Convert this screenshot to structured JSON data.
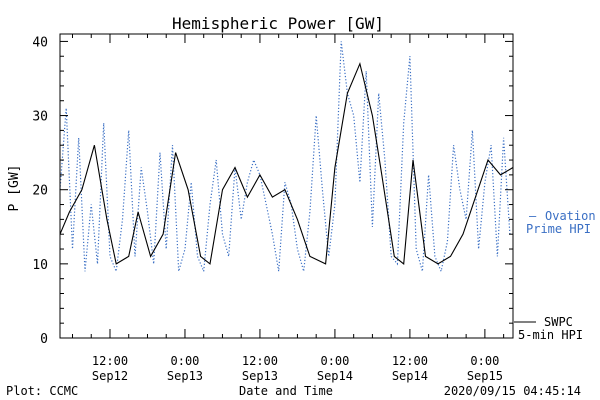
{
  "chart_data": {
    "type": "line",
    "title": "Hemispheric Power [GW]",
    "ylabel": "P [GW]",
    "xlabel": "Date and Time",
    "ylim": [
      0,
      41
    ],
    "xlim": [
      "2020-09-12T04:00",
      "2020-09-15T04:30"
    ],
    "y_ticks": [
      "0",
      "10",
      "20",
      "30",
      "40"
    ],
    "x_ticks": [
      {
        "time": "2020-09-12T12:00",
        "line1": "12:00",
        "line2": "Sep12"
      },
      {
        "time": "2020-09-13T00:00",
        "line1": "0:00",
        "line2": "Sep13"
      },
      {
        "time": "2020-09-13T12:00",
        "line1": "12:00",
        "line2": "Sep13"
      },
      {
        "time": "2020-09-14T00:00",
        "line1": "0:00",
        "line2": "Sep14"
      },
      {
        "time": "2020-09-14T12:00",
        "line1": "12:00",
        "line2": "Sep14"
      },
      {
        "time": "2020-09-15T00:00",
        "line1": "0:00",
        "line2": "Sep15"
      }
    ],
    "grid": false,
    "legend_placement": "right",
    "series": [
      {
        "name": "SWPC 5-min HPI",
        "legend_lines": [
          "SWPC",
          "5-min HPI"
        ],
        "color": "#000000",
        "style": "solid",
        "x": [
          "2020-09-12T04:00",
          "2020-09-12T05:30",
          "2020-09-12T07:30",
          "2020-09-12T09:30",
          "2020-09-12T11:30",
          "2020-09-12T13:00",
          "2020-09-12T15:00",
          "2020-09-12T16:30",
          "2020-09-12T18:30",
          "2020-09-12T20:30",
          "2020-09-12T22:30",
          "2020-09-13T00:30",
          "2020-09-13T02:30",
          "2020-09-13T04:00",
          "2020-09-13T06:00",
          "2020-09-13T08:00",
          "2020-09-13T10:00",
          "2020-09-13T12:00",
          "2020-09-13T14:00",
          "2020-09-13T16:00",
          "2020-09-13T18:00",
          "2020-09-13T20:00",
          "2020-09-13T22:30",
          "2020-09-14T00:00",
          "2020-09-14T02:00",
          "2020-09-14T04:00",
          "2020-09-14T06:00",
          "2020-09-14T07:30",
          "2020-09-14T09:30",
          "2020-09-14T11:00",
          "2020-09-14T12:30",
          "2020-09-14T14:30",
          "2020-09-14T16:30",
          "2020-09-14T18:30",
          "2020-09-14T20:30",
          "2020-09-14T22:30",
          "2020-09-15T00:30",
          "2020-09-15T02:30",
          "2020-09-15T04:30"
        ],
        "y": [
          14,
          17,
          20,
          26,
          16,
          10,
          11,
          17,
          11,
          14,
          25,
          20,
          11,
          10,
          20,
          23,
          19,
          22,
          19,
          20,
          16,
          11,
          10,
          23,
          33,
          37,
          30,
          22,
          11,
          10,
          24,
          11,
          10,
          11,
          14,
          19,
          24,
          22,
          23
        ]
      },
      {
        "name": "Ovation Prime HPI",
        "legend_lines": [
          "Ovation",
          "Prime HPI"
        ],
        "legend_marker": "—",
        "color": "#3a6fc4",
        "style": "dotted",
        "x": [
          "2020-09-12T04:00",
          "2020-09-12T05:00",
          "2020-09-12T06:00",
          "2020-09-12T07:00",
          "2020-09-12T08:00",
          "2020-09-12T09:00",
          "2020-09-12T10:00",
          "2020-09-12T11:00",
          "2020-09-12T12:00",
          "2020-09-12T13:00",
          "2020-09-12T14:00",
          "2020-09-12T15:00",
          "2020-09-12T16:00",
          "2020-09-12T17:00",
          "2020-09-12T18:00",
          "2020-09-12T19:00",
          "2020-09-12T20:00",
          "2020-09-12T21:00",
          "2020-09-12T22:00",
          "2020-09-12T23:00",
          "2020-09-13T00:00",
          "2020-09-13T01:00",
          "2020-09-13T02:00",
          "2020-09-13T03:00",
          "2020-09-13T04:00",
          "2020-09-13T05:00",
          "2020-09-13T06:00",
          "2020-09-13T07:00",
          "2020-09-13T08:00",
          "2020-09-13T09:00",
          "2020-09-13T10:00",
          "2020-09-13T11:00",
          "2020-09-13T12:00",
          "2020-09-13T13:00",
          "2020-09-13T14:00",
          "2020-09-13T15:00",
          "2020-09-13T16:00",
          "2020-09-13T17:00",
          "2020-09-13T18:00",
          "2020-09-13T19:00",
          "2020-09-13T20:00",
          "2020-09-13T21:00",
          "2020-09-13T22:00",
          "2020-09-13T23:00",
          "2020-09-14T00:00",
          "2020-09-14T01:00",
          "2020-09-14T02:00",
          "2020-09-14T03:00",
          "2020-09-14T04:00",
          "2020-09-14T05:00",
          "2020-09-14T06:00",
          "2020-09-14T07:00",
          "2020-09-14T08:00",
          "2020-09-14T09:00",
          "2020-09-14T10:00",
          "2020-09-14T11:00",
          "2020-09-14T12:00",
          "2020-09-14T13:00",
          "2020-09-14T14:00",
          "2020-09-14T15:00",
          "2020-09-14T16:00",
          "2020-09-14T17:00",
          "2020-09-14T18:00",
          "2020-09-14T19:00",
          "2020-09-14T20:00",
          "2020-09-14T21:00",
          "2020-09-14T22:00",
          "2020-09-14T23:00",
          "2020-09-15T00:00",
          "2020-09-15T01:00",
          "2020-09-15T02:00",
          "2020-09-15T03:00",
          "2020-09-15T04:00"
        ],
        "y": [
          20,
          31,
          12,
          27,
          9,
          18,
          10,
          29,
          11,
          9,
          16,
          28,
          11,
          23,
          17,
          10,
          25,
          12,
          26,
          9,
          12,
          21,
          11,
          9,
          18,
          24,
          14,
          11,
          23,
          16,
          21,
          24,
          22,
          18,
          14,
          9,
          21,
          18,
          12,
          9,
          17,
          30,
          20,
          11,
          18,
          40,
          33,
          30,
          21,
          36,
          15,
          33,
          24,
          11,
          10,
          29,
          38,
          12,
          9,
          22,
          11,
          9,
          13,
          26,
          20,
          16,
          28,
          12,
          21,
          26,
          11,
          27,
          14
        ]
      }
    ]
  },
  "footer": {
    "left": "Plot: CCMC",
    "right": "2020/09/15 04:45:14"
  }
}
